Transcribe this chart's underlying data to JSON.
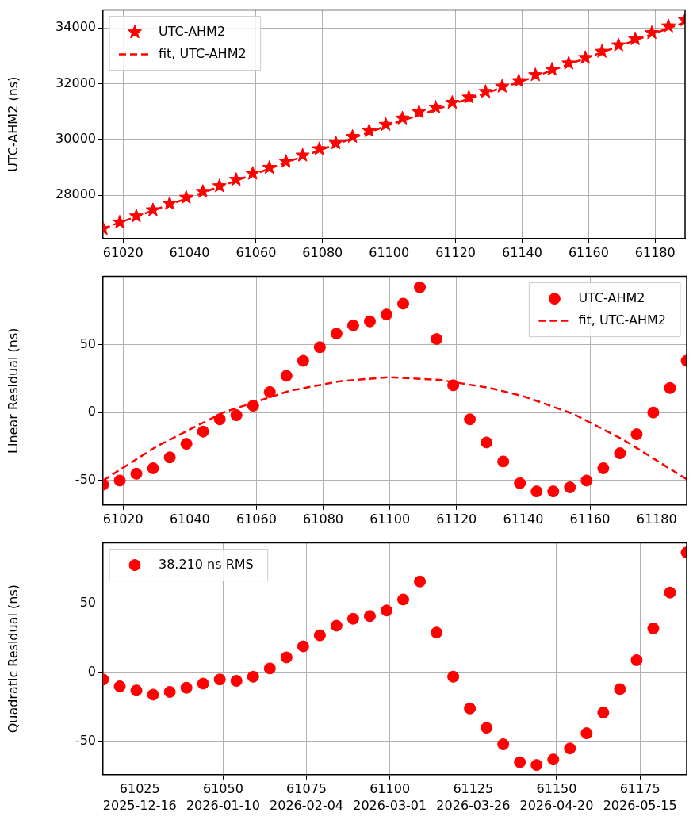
{
  "chart_data": [
    {
      "type": "scatter",
      "ylabel": "UTC-AHM2 (ns)",
      "xlim": [
        61014,
        61189
      ],
      "xticks": [
        61020,
        61040,
        61060,
        61080,
        61100,
        61120,
        61140,
        61160,
        61180
      ],
      "ylim": [
        26450,
        34640
      ],
      "yticks": [
        28000,
        30000,
        32000,
        34000
      ],
      "grid": true,
      "legend": "top left",
      "x": [
        61014,
        61019,
        61024,
        61029,
        61034,
        61039,
        61044,
        61049,
        61054,
        61059,
        61064,
        61069,
        61074,
        61079,
        61084,
        61089,
        61094,
        61099,
        61104,
        61109,
        61114,
        61119,
        61124,
        61129,
        61134,
        61139,
        61144,
        61149,
        61154,
        61159,
        61164,
        61169,
        61174,
        61179,
        61184,
        61189
      ],
      "series": [
        {
          "name": "UTC-AHM2",
          "color": "#ff0000",
          "marker": "star",
          "values": [
            26800,
            27030,
            27250,
            27470,
            27700,
            27920,
            28130,
            28330,
            28560,
            28780,
            28990,
            29210,
            29430,
            29660,
            29870,
            30100,
            30310,
            30530,
            30760,
            30980,
            31150,
            31320,
            31510,
            31710,
            31900,
            32100,
            32310,
            32510,
            32730,
            32930,
            33150,
            33380,
            33600,
            33820,
            34060,
            34280
          ]
        },
        {
          "name": "fit, UTC-AHM2",
          "type": "line",
          "color": "#ff0000",
          "line_style": "dashed",
          "x": [
            61014,
            61060,
            61100,
            61140,
            61189
          ],
          "values": [
            26810,
            28780,
            30520,
            32090,
            34200
          ]
        }
      ]
    },
    {
      "type": "scatter",
      "ylabel": "Linear Residual (ns)",
      "xlim": [
        61014,
        61189
      ],
      "xticks": [
        61020,
        61040,
        61060,
        61080,
        61100,
        61120,
        61140,
        61160,
        61180
      ],
      "ylim": [
        -68,
        100
      ],
      "yticks": [
        -50,
        0,
        50
      ],
      "grid": true,
      "legend": "top right",
      "x": [
        61014,
        61019,
        61024,
        61029,
        61034,
        61039,
        61044,
        61049,
        61054,
        61059,
        61064,
        61069,
        61074,
        61079,
        61084,
        61089,
        61094,
        61099,
        61104,
        61109,
        61114,
        61119,
        61124,
        61129,
        61134,
        61139,
        61144,
        61149,
        61154,
        61159,
        61164,
        61169,
        61174,
        61179,
        61184,
        61189
      ],
      "series": [
        {
          "name": "UTC-AHM2",
          "color": "#ff0000",
          "marker": "circle",
          "values": [
            -53,
            -50,
            -45,
            -41,
            -33,
            -23,
            -14,
            -5,
            -2,
            5,
            15,
            27,
            38,
            48,
            58,
            64,
            67,
            72,
            80,
            92,
            54,
            20,
            -5,
            -22,
            -36,
            -52,
            -58,
            -58,
            -55,
            -50,
            -41,
            -30,
            -16,
            0,
            18,
            38
          ]
        },
        {
          "name": "fit, UTC-AHM2",
          "type": "line",
          "color": "#ff0000",
          "line_style": "dashed",
          "x": [
            61014,
            61030,
            61050,
            61070,
            61085,
            61100,
            61115,
            61130,
            61140,
            61155,
            61170,
            61189
          ],
          "values": [
            -50,
            -25,
            0,
            16,
            23,
            26,
            24,
            18,
            12,
            -1,
            -20,
            -49
          ]
        }
      ]
    },
    {
      "type": "scatter",
      "ylabel": "Quadratic Residual (ns)",
      "xlim": [
        61014,
        61189
      ],
      "xticks": [
        61025,
        61050,
        61075,
        61100,
        61125,
        61150,
        61175
      ],
      "annotations": [
        "2025-12-16",
        "2026-01-10",
        "2026-02-04",
        "2026-03-01",
        "2026-03-26",
        "2026-04-20",
        "2026-05-15"
      ],
      "ylim": [
        -74,
        94
      ],
      "yticks": [
        -50,
        0,
        50
      ],
      "grid": true,
      "legend": "top left",
      "x": [
        61014,
        61019,
        61024,
        61029,
        61034,
        61039,
        61044,
        61049,
        61054,
        61059,
        61064,
        61069,
        61074,
        61079,
        61084,
        61089,
        61094,
        61099,
        61104,
        61109,
        61114,
        61119,
        61124,
        61129,
        61134,
        61139,
        61144,
        61149,
        61154,
        61159,
        61164,
        61169,
        61174,
        61179,
        61184,
        61189
      ],
      "series": [
        {
          "name": "38.210 ns RMS",
          "color": "#ff0000",
          "marker": "circle",
          "values": [
            -5,
            -10,
            -13,
            -16,
            -14,
            -11,
            -8,
            -5,
            -6,
            -3,
            3,
            11,
            19,
            27,
            34,
            39,
            41,
            45,
            53,
            66,
            29,
            -3,
            -26,
            -40,
            -52,
            -65,
            -67,
            -63,
            -55,
            -44,
            -29,
            -12,
            9,
            32,
            58,
            87
          ]
        }
      ]
    }
  ]
}
